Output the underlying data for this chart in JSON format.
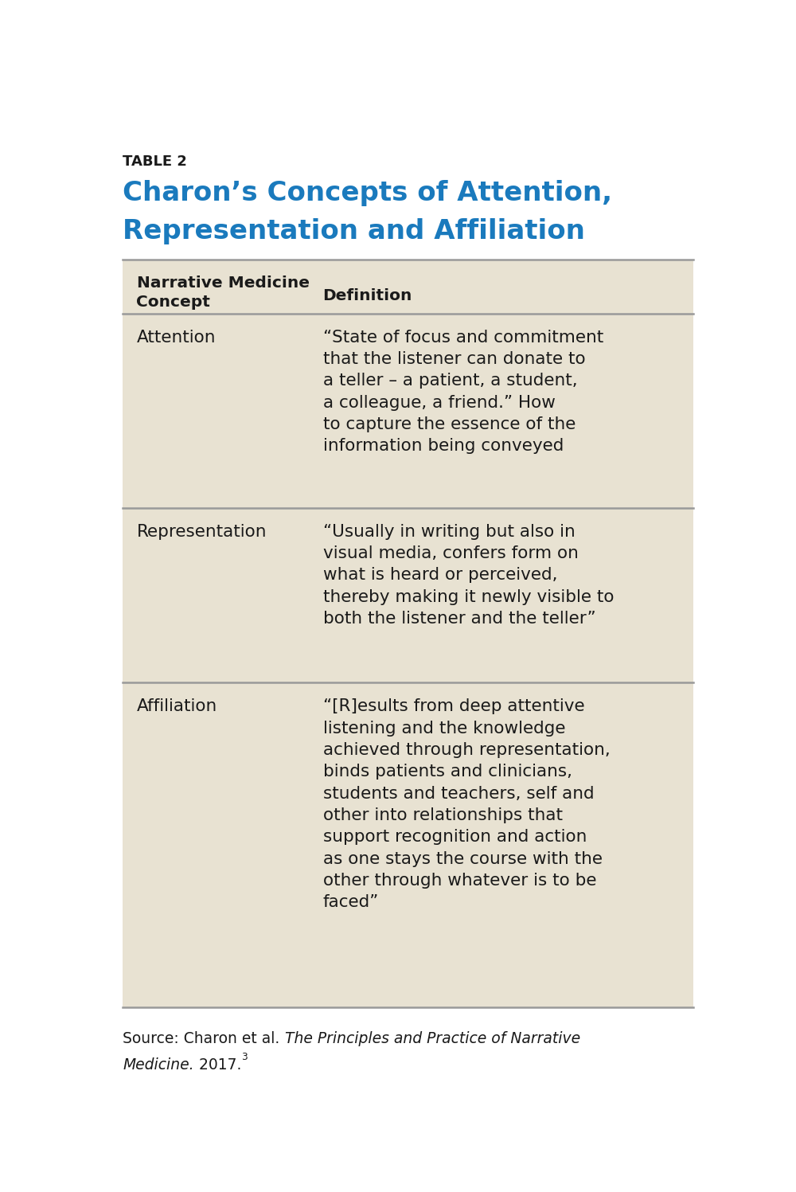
{
  "table_label": "TABLE 2",
  "title_line1": "Charon’s Concepts of Attention,",
  "title_line2": "Representation and Affiliation",
  "title_color": "#1a7abd",
  "table_label_color": "#1a1a1a",
  "background_color": "#ffffff",
  "table_bg_color": "#e8e2d2",
  "header_col1": "Narrative Medicine\nConcept",
  "header_col2": "Definition",
  "header_text_color": "#1a1a1a",
  "divider_color": "#999999",
  "body_text_color": "#1a1a1a",
  "rows": [
    {
      "concept": "Attention",
      "definition_lines": [
        "“State of focus and commitment",
        "that the listener can donate to",
        "a teller – a patient, a student,",
        "a colleague, a friend.” How",
        "to capture the essence of the",
        "information being conveyed"
      ]
    },
    {
      "concept": "Representation",
      "definition_lines": [
        "“Usually in writing but also in",
        "visual media, confers form on",
        "what is heard or perceived,",
        "thereby making it newly visible to",
        "both the listener and the teller”"
      ]
    },
    {
      "concept": "Affiliation",
      "definition_lines": [
        "“[R]esults from deep attentive",
        "listening and the knowledge",
        "achieved through representation,",
        "binds patients and clinicians,",
        "students and teachers, self and",
        "other into relationships that",
        "support recognition and action",
        "as one stays the course with the",
        "other through whatever is to be",
        "faced”"
      ]
    }
  ],
  "source_line1_normal": "Source: Charon et al. ",
  "source_line1_italic": "The Principles and Practice of Narrative",
  "source_line2_italic": "Medicine.",
  "source_line2_normal": " 2017.",
  "source_superscript": "3",
  "fig_width": 10.0,
  "fig_height": 14.97,
  "dpi": 100
}
